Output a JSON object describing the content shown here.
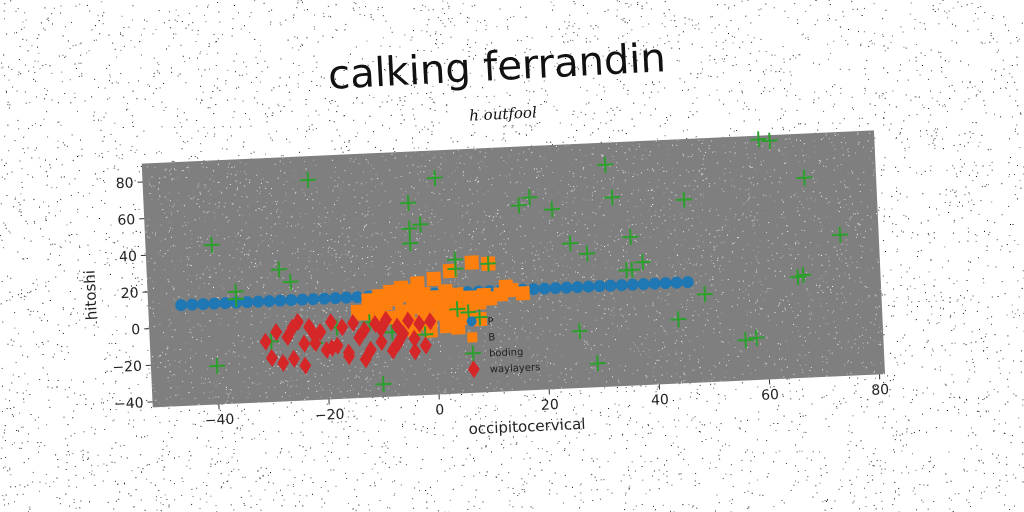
{
  "chart_data": {
    "type": "scatter",
    "title": "calking ferrandin",
    "subtitle": "h outfool",
    "xlabel": "occipitocervical",
    "ylabel": "hitoshi",
    "xlim": [
      -52,
      81
    ],
    "ylim": [
      -43,
      90
    ],
    "xticks": [
      -40,
      -20,
      0,
      20,
      40,
      60,
      80
    ],
    "yticks": [
      -40,
      -20,
      0,
      20,
      40,
      60,
      80
    ],
    "xtick_labels": [
      "−40",
      "−20",
      "0",
      "20",
      "40",
      "60",
      "80"
    ],
    "ytick_labels": [
      "−40",
      "−20",
      "0",
      "20",
      "40",
      "60",
      "80"
    ],
    "grid": false,
    "legend_position": "lower-center",
    "plot_background": "#7f7f7f",
    "series": [
      {
        "name": "P",
        "marker": "circle",
        "color": "#1f77b4",
        "x": [
          -46,
          -44,
          -42,
          -40,
          -38,
          -36,
          -34,
          -32,
          -30,
          -28,
          -26,
          -24,
          -22,
          -20,
          -18,
          -16,
          -14,
          -12,
          -10,
          -8,
          -6,
          -4,
          -2,
          0,
          2,
          4,
          6,
          8,
          10,
          12,
          14,
          16,
          18,
          20,
          22,
          24,
          26,
          28,
          30,
          32,
          34,
          36,
          38,
          40,
          42,
          44,
          46
        ],
        "y": [
          12,
          12,
          12,
          12,
          12,
          12,
          12,
          12,
          12,
          12,
          12,
          12,
          12,
          12,
          12,
          12,
          12,
          12,
          12,
          12,
          12,
          12,
          12,
          12,
          12,
          12,
          12,
          12,
          12,
          12,
          12,
          12,
          12,
          12,
          12,
          12,
          12,
          12,
          12,
          12,
          12,
          12,
          12,
          12,
          12,
          12,
          12
        ]
      },
      {
        "name": "B",
        "marker": "square",
        "color": "#ff7f0e",
        "x": [
          -12,
          -10,
          -8,
          -6,
          -4,
          -2,
          0,
          2,
          4,
          6,
          -11,
          -9,
          -7,
          -5,
          -3,
          -1,
          1,
          3,
          5,
          7,
          9,
          -13,
          -10,
          -6,
          -4,
          -2,
          0,
          2,
          4,
          6,
          8,
          10,
          12,
          14,
          -8,
          -5,
          -2,
          1,
          3,
          5,
          -6,
          -3,
          -1,
          2,
          4,
          6,
          8,
          -4,
          -1,
          2,
          4,
          -3,
          0,
          3
        ],
        "y": [
          10,
          12,
          14,
          16,
          14,
          12,
          10,
          13,
          11,
          9,
          6,
          8,
          10,
          12,
          10,
          8,
          9,
          7,
          8,
          9,
          10,
          3,
          4,
          3,
          5,
          4,
          6,
          5,
          3,
          4,
          6,
          8,
          10,
          12,
          0,
          1,
          0,
          1,
          2,
          0,
          -3,
          -4,
          -2,
          -3,
          -4,
          -2,
          -3,
          -7,
          -8,
          -6,
          -7,
          18,
          20,
          24
        ],
        "extra_points": [
          [
            7,
            28
          ],
          [
            10,
            27
          ],
          [
            16,
            10
          ],
          [
            13,
            14
          ],
          [
            -11,
            2
          ],
          [
            -14,
            4
          ]
        ]
      },
      {
        "name": "boding",
        "marker": "plus",
        "color": "#2ca02c",
        "x": [
          -22,
          -40,
          -36,
          -28,
          -26,
          -4,
          -4,
          -2,
          1,
          4,
          10,
          -4,
          16,
          18,
          22,
          25,
          28,
          33,
          32,
          36,
          35,
          36,
          38,
          46,
          49,
          56,
          60,
          62,
          68,
          67,
          74,
          -40,
          -10,
          -22,
          -30,
          -18,
          -12,
          -8,
          -2,
          4,
          6,
          8,
          4,
          26,
          29,
          44,
          58,
          66,
          -36
        ],
        "y": [
          77,
          44,
          18,
          29,
          22,
          62,
          48,
          50,
          75,
          30,
          27,
          40,
          58,
          62,
          55,
          36,
          30,
          60,
          78,
          38,
          20,
          20,
          24,
          57,
          5,
          -21,
          88,
          87,
          66,
          13,
          34,
          -22,
          -36,
          -12,
          -10,
          -4,
          -2,
          -8,
          -10,
          3,
          1,
          -2,
          25,
          -12,
          -30,
          -8,
          -20,
          12,
          14
        ]
      },
      {
        "name": "waylayers",
        "marker": "diamond",
        "color": "#d62728",
        "x": [
          -31,
          -29,
          -27,
          -25,
          -23,
          -21,
          -19,
          -17,
          -15,
          -13,
          -11,
          -9,
          -7,
          -5,
          -3,
          -1,
          -30,
          -28,
          -26,
          -24,
          -22,
          -20,
          -18,
          -16,
          -14,
          -12,
          -10,
          -8,
          -6,
          -4,
          -2,
          -26,
          -24,
          -22,
          -19,
          -16,
          -13,
          -10,
          -7,
          -4
        ],
        "y": [
          -10,
          -5,
          -8,
          0,
          -3,
          -6,
          -1,
          -4,
          -2,
          -6,
          -3,
          -1,
          -5,
          -2,
          -4,
          -3,
          -19,
          -22,
          -20,
          -24,
          -12,
          -16,
          -14,
          -20,
          -10,
          -17,
          -13,
          -18,
          -9,
          -12,
          -16,
          -3,
          -12,
          -8,
          -15,
          -18,
          -22,
          -6,
          -14,
          -19
        ]
      }
    ]
  }
}
